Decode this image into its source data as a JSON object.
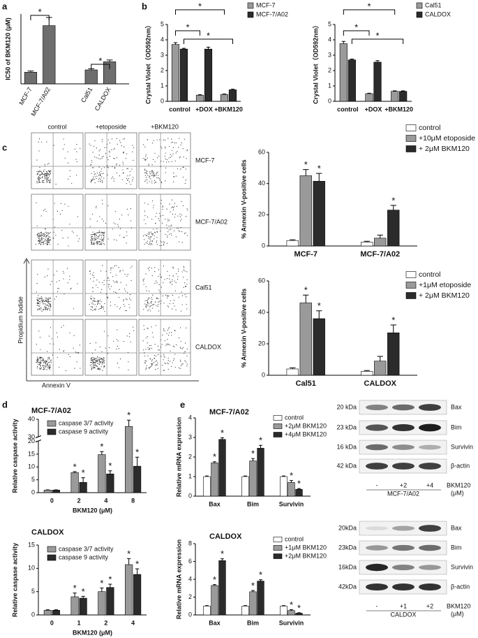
{
  "panel_labels": [
    "a",
    "b",
    "c",
    "d",
    "e"
  ],
  "chart_data": [
    {
      "type": "bar",
      "ylabel": "IC50 of BKM120 (μM)",
      "categories": [
        "MCF-7",
        "MCF-7/A02",
        "Cal51",
        "CALDOX"
      ],
      "values": [
        1.0,
        5.0,
        1.2,
        1.9
      ],
      "errors": [
        0.1,
        0.7,
        0.1,
        0.15
      ],
      "color": "#6e6e6e",
      "ylim": [
        0,
        6
      ],
      "brackets": [
        "*",
        "*"
      ]
    },
    {
      "type": "bar",
      "ylabel": "Crystal Violet（OD592nm）",
      "categories": [
        "control",
        "+DOX",
        "+BKM120"
      ],
      "series": [
        {
          "name": "MCF-7",
          "color": "#9a9a9a",
          "values": [
            3.7,
            0.4,
            0.45
          ],
          "errors": [
            0.12,
            0.03,
            0.03
          ]
        },
        {
          "name": "MCF-7/A02",
          "color": "#2b2b2b",
          "values": [
            3.4,
            3.4,
            0.75
          ],
          "errors": [
            0.05,
            0.12,
            0.04
          ]
        }
      ],
      "ylim": [
        0,
        5
      ],
      "yticks": [
        0,
        1,
        2,
        3,
        4,
        5
      ],
      "brackets": [
        "*",
        "*",
        "*"
      ]
    },
    {
      "type": "bar",
      "ylabel": "Crystal Violet（OD592nm）",
      "categories": [
        "control",
        "+DOX",
        "+BKM120"
      ],
      "series": [
        {
          "name": "Cal51",
          "color": "#9a9a9a",
          "values": [
            3.75,
            0.5,
            0.65
          ],
          "errors": [
            0.15,
            0.03,
            0.03
          ]
        },
        {
          "name": "CALDOX",
          "color": "#2b2b2b",
          "values": [
            2.7,
            2.55,
            0.65
          ],
          "errors": [
            0.05,
            0.1,
            0.03
          ]
        }
      ],
      "ylim": [
        0,
        5
      ],
      "yticks": [
        0,
        1,
        2,
        3,
        4,
        5
      ],
      "brackets": [
        "*",
        "*",
        "*"
      ]
    },
    {
      "type": "bar",
      "ylabel": "% Annexin V-positive cells",
      "categories": [
        "MCF-7",
        "MCF-7/A02"
      ],
      "series": [
        {
          "name": "control",
          "color": "#ffffff",
          "values": [
            3.5,
            2.5
          ],
          "errors": [
            0.5,
            0.5
          ],
          "significance": [
            null,
            null
          ]
        },
        {
          "name": "+10μM etoposide",
          "color": "#9a9a9a",
          "values": [
            45,
            5
          ],
          "errors": [
            4,
            2
          ],
          "significance": [
            "*",
            null
          ]
        },
        {
          "name": "+ 2μM BKM120",
          "color": "#2b2b2b",
          "values": [
            41.5,
            23
          ],
          "errors": [
            5,
            3
          ],
          "significance": [
            "*",
            "*"
          ]
        }
      ],
      "ylim": [
        0,
        60
      ],
      "yticks": [
        0,
        20,
        40,
        60
      ]
    },
    {
      "type": "bar",
      "ylabel": "% Annexin V-positive cells",
      "categories": [
        "Cal51",
        "CALDOX"
      ],
      "series": [
        {
          "name": "control",
          "color": "#ffffff",
          "values": [
            4,
            2.5
          ],
          "errors": [
            0.7,
            0.5
          ],
          "significance": [
            null,
            null
          ]
        },
        {
          "name": "+1μM etoposide",
          "color": "#9a9a9a",
          "values": [
            46,
            9
          ],
          "errors": [
            5,
            3
          ],
          "significance": [
            "*",
            null
          ]
        },
        {
          "name": "+ 2μM BKM120",
          "color": "#2b2b2b",
          "values": [
            36,
            27
          ],
          "errors": [
            5,
            5
          ],
          "significance": [
            "*",
            "*"
          ]
        }
      ],
      "ylim": [
        0,
        60
      ],
      "yticks": [
        0,
        20,
        40,
        60
      ]
    },
    {
      "type": "bar",
      "title": "MCF-7/A02",
      "ylabel": "Relative caspase activity",
      "xlabel": "BKM120 (μM)",
      "categories": [
        "0",
        "2",
        "4",
        "8"
      ],
      "series": [
        {
          "name": "caspase 3/7 activity",
          "color": "#9a9a9a",
          "values": [
            1,
            7.8,
            14.8,
            36
          ],
          "errors": [
            0.1,
            0.4,
            1.2,
            3.5
          ],
          "significance": [
            null,
            "*",
            "*",
            "*"
          ]
        },
        {
          "name": "caspase 9 activity",
          "color": "#2b2b2b",
          "values": [
            1,
            4,
            7.3,
            10.3
          ],
          "errors": [
            0.1,
            1.8,
            1.2,
            3.5
          ],
          "significance": [
            null,
            "*",
            "*",
            "*"
          ]
        }
      ],
      "ylim": [
        0,
        40
      ],
      "ybreak": [
        20,
        30
      ],
      "yticks": [
        0,
        5,
        10,
        15,
        20,
        30,
        40
      ]
    },
    {
      "type": "bar",
      "title": "CALDOX",
      "ylabel": "Relative caspase activity",
      "xlabel": "BKM120 (μM)",
      "categories": [
        "0",
        "1",
        "2",
        "4"
      ],
      "series": [
        {
          "name": "caspase 3/7 activity",
          "color": "#9a9a9a",
          "values": [
            1,
            3.9,
            5,
            10.8
          ],
          "errors": [
            0.1,
            0.8,
            0.8,
            1.3
          ],
          "significance": [
            null,
            "*",
            "*",
            "*"
          ]
        },
        {
          "name": "caspase 9 activity",
          "color": "#2b2b2b",
          "values": [
            1,
            3.6,
            5.9,
            8.7
          ],
          "errors": [
            0.1,
            0.4,
            0.7,
            1.2
          ],
          "significance": [
            null,
            "*",
            "*",
            "*"
          ]
        }
      ],
      "ylim": [
        0,
        15
      ],
      "yticks": [
        0,
        5,
        10,
        15
      ]
    },
    {
      "type": "bar",
      "title": "MCF-7/A02",
      "ylabel": "Relative mRNA expression",
      "categories": [
        "Bax",
        "Bim",
        "Survivin"
      ],
      "series": [
        {
          "name": "control",
          "color": "#ffffff",
          "values": [
            1,
            1,
            1
          ],
          "errors": [
            0.03,
            0.03,
            0.03
          ],
          "significance": [
            null,
            null,
            null
          ]
        },
        {
          "name": "+2μM BKM120",
          "color": "#9a9a9a",
          "values": [
            1.7,
            1.8,
            0.7
          ],
          "errors": [
            0.06,
            0.12,
            0.1
          ],
          "significance": [
            "*",
            "*",
            "*"
          ]
        },
        {
          "name": "+4μM BKM120",
          "color": "#2b2b2b",
          "values": [
            2.9,
            2.45,
            0.35
          ],
          "errors": [
            0.08,
            0.15,
            0.04
          ],
          "significance": [
            "*",
            "*",
            "*"
          ]
        }
      ],
      "ylim": [
        0,
        4
      ],
      "yticks": [
        0,
        1,
        2,
        3,
        4
      ]
    },
    {
      "type": "bar",
      "title": "CALDOX",
      "ylabel": "Relative mRNA expression",
      "categories": [
        "Bax",
        "Bim",
        "Survivin"
      ],
      "series": [
        {
          "name": "control",
          "color": "#ffffff",
          "values": [
            1,
            1,
            1
          ],
          "errors": [
            0.05,
            0.05,
            0.05
          ],
          "significance": [
            null,
            null,
            null
          ]
        },
        {
          "name": "+1μM BKM120",
          "color": "#9a9a9a",
          "values": [
            3.3,
            2.6,
            0.5
          ],
          "errors": [
            0.1,
            0.15,
            0.1
          ],
          "significance": [
            "*",
            "*",
            "*"
          ]
        },
        {
          "name": "+2μM BKM120",
          "color": "#2b2b2b",
          "values": [
            6.1,
            3.8,
            0.2
          ],
          "errors": [
            0.2,
            0.15,
            0.05
          ],
          "significance": [
            "*",
            "*",
            "*"
          ]
        }
      ],
      "ylim": [
        0,
        8
      ],
      "yticks": [
        0,
        2,
        4,
        6,
        8
      ]
    }
  ],
  "flow_cytometry": {
    "columns": [
      "control",
      "+etoposide",
      "+BKM120"
    ],
    "rows": [
      "MCF-7",
      "MCF-7/A02",
      "Cal51",
      "CALDOX"
    ],
    "ylabel": "Propidium Iodide",
    "xlabel": "Annexin V"
  },
  "western_blots": [
    {
      "markers": [
        "20 kDa",
        "23 kDa",
        "16 kDa",
        "42 kDa"
      ],
      "proteins": [
        "Bax",
        "Bim",
        "Survivin",
        "β-actin"
      ],
      "lanes": [
        "-",
        "+2",
        "+4"
      ],
      "treatment": "BKM120",
      "unit": "(μM)",
      "cell_line": "MCF-7/A02"
    },
    {
      "markers": [
        "20kDa",
        "23kDa",
        "16kDa",
        "42kDa"
      ],
      "proteins": [
        "Bax",
        "Bim",
        "Survivin",
        "β-actin"
      ],
      "lanes": [
        "-",
        "+1",
        "+2"
      ],
      "treatment": "BKM120",
      "unit": "(μM)",
      "cell_line": "CALDOX"
    }
  ]
}
